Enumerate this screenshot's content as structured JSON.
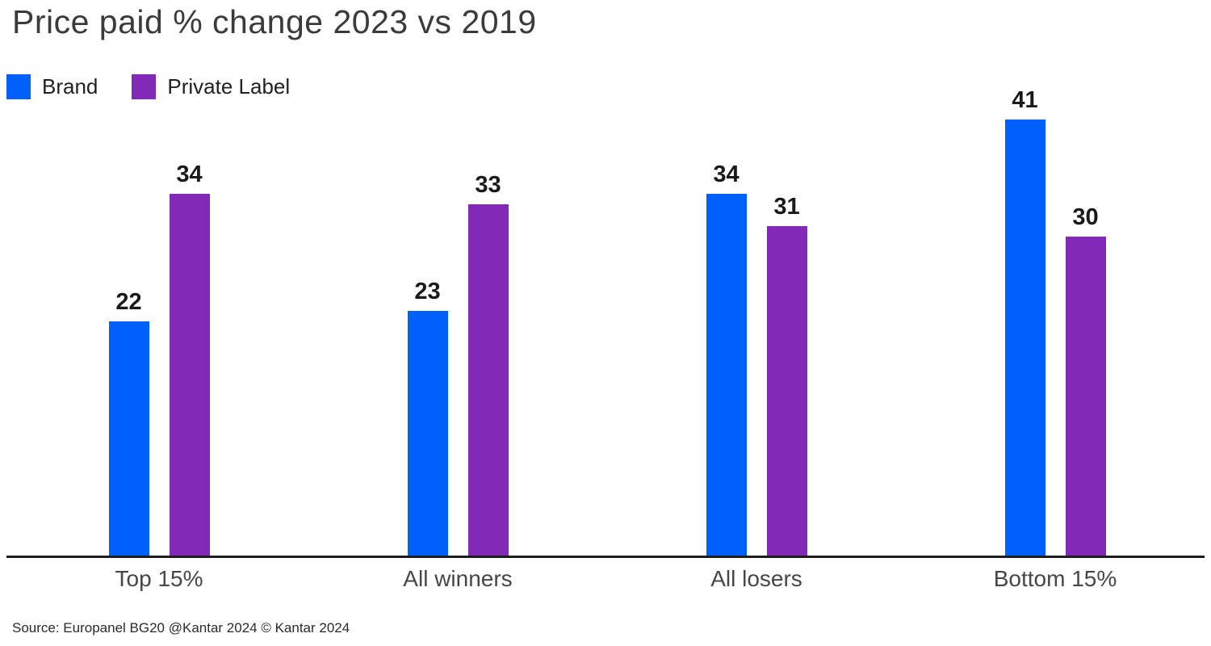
{
  "title": "Price paid % change 2023 vs 2019",
  "source": "Source: Europanel BG20 @Kantar 2024 © Kantar 2024",
  "colors": {
    "brand_blue": "#0061FA",
    "private_label_purple": "#8229B8",
    "title_text": "#3B3B3B",
    "value_label_text": "#1A1A1A",
    "category_text": "#474747",
    "axis_line": "#1F1F1F",
    "background": "#FFFFFF"
  },
  "chart_data": {
    "type": "bar",
    "title": "Price paid % change 2023 vs 2019",
    "categories": [
      "Top 15%",
      "All winners",
      "All losers",
      "Bottom 15%"
    ],
    "series": [
      {
        "name": "Brand",
        "color": "#0061FA",
        "values": [
          22,
          23,
          34,
          41
        ]
      },
      {
        "name": "Private Label",
        "color": "#8229B8",
        "values": [
          34,
          33,
          31,
          30
        ]
      }
    ],
    "xlabel": "",
    "ylabel": "",
    "ylim": [
      0,
      42
    ],
    "grid": false,
    "axes_visible": {
      "x": true,
      "y": false
    },
    "legend_position": "top-left",
    "value_labels": true,
    "source_note": "Source: Europanel BG20 @Kantar 2024 © Kantar 2024"
  }
}
